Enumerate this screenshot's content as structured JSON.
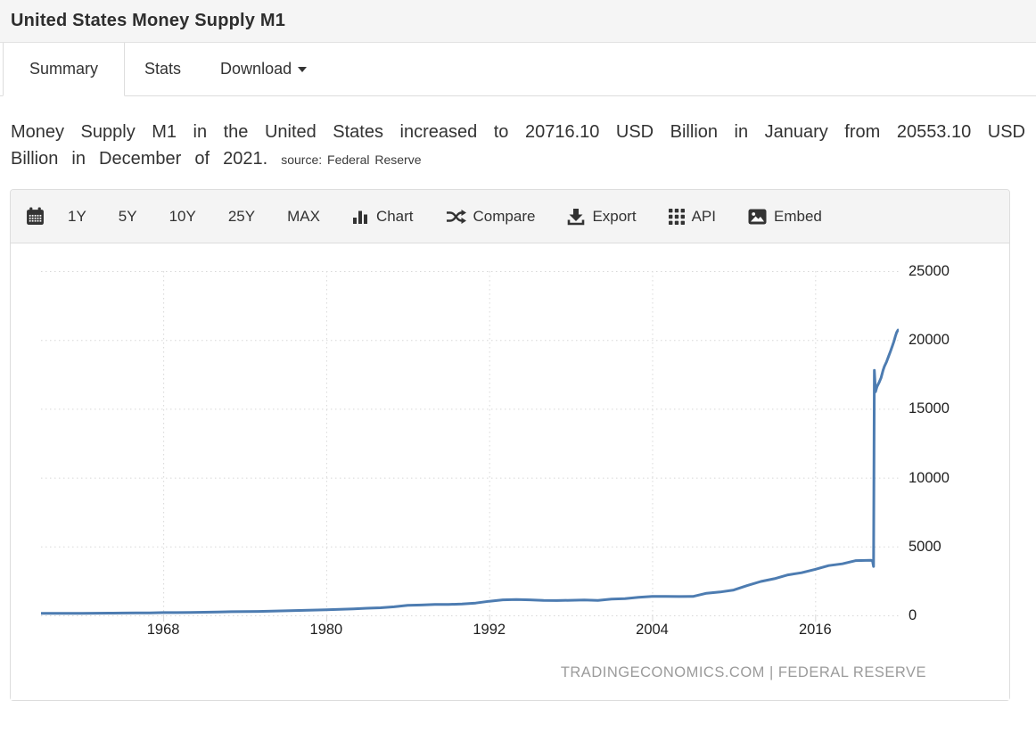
{
  "header": {
    "title": "United States Money Supply M1"
  },
  "tabs": [
    {
      "label": "Summary",
      "active": true
    },
    {
      "label": "Stats",
      "active": false
    },
    {
      "label": "Download",
      "active": false,
      "has_caret": true
    }
  ],
  "summary": {
    "text": "Money Supply M1 in the United States increased to 20716.10 USD Billion in January from 20553.10 USD Billion in December of 2021.",
    "source_label": "source:",
    "source_value": "Federal Reserve"
  },
  "toolbar": {
    "calendar_icon": "calendar-icon",
    "ranges": [
      "1Y",
      "5Y",
      "10Y",
      "25Y",
      "MAX"
    ],
    "actions": [
      {
        "icon": "bar-chart-icon",
        "label": "Chart"
      },
      {
        "icon": "shuffle-icon",
        "label": "Compare"
      },
      {
        "icon": "download-icon",
        "label": "Export"
      },
      {
        "icon": "grid-icon",
        "label": "API"
      },
      {
        "icon": "image-icon",
        "label": "Embed"
      }
    ]
  },
  "chart_data": {
    "type": "line",
    "series_name": "United States Money Supply M1 (USD Billion)",
    "x_range": [
      1959,
      2022.15
    ],
    "y_range": [
      0,
      25000
    ],
    "x_ticks": [
      1968,
      1980,
      1992,
      2004,
      2016
    ],
    "y_ticks": [
      0,
      5000,
      10000,
      15000,
      20000,
      25000
    ],
    "grid": true,
    "legend": false,
    "line_color": "#4d7cb1",
    "grid_color": "#d8d8d8",
    "watermark": "TRADINGECONOMICS.COM | FEDERAL RESERVE",
    "points": [
      [
        1959,
        141
      ],
      [
        1960,
        140
      ],
      [
        1961,
        145
      ],
      [
        1962,
        148
      ],
      [
        1963,
        154
      ],
      [
        1964,
        161
      ],
      [
        1965,
        168
      ],
      [
        1966,
        173
      ],
      [
        1967,
        184
      ],
      [
        1968,
        198
      ],
      [
        1969,
        204
      ],
      [
        1970,
        214
      ],
      [
        1971,
        228
      ],
      [
        1972,
        249
      ],
      [
        1973,
        263
      ],
      [
        1974,
        274
      ],
      [
        1975,
        287
      ],
      [
        1976,
        306
      ],
      [
        1977,
        331
      ],
      [
        1978,
        358
      ],
      [
        1979,
        382
      ],
      [
        1980,
        409
      ],
      [
        1981,
        436
      ],
      [
        1982,
        475
      ],
      [
        1983,
        521
      ],
      [
        1984,
        552
      ],
      [
        1985,
        620
      ],
      [
        1986,
        725
      ],
      [
        1987,
        750
      ],
      [
        1988,
        787
      ],
      [
        1989,
        794
      ],
      [
        1990,
        825
      ],
      [
        1991,
        897
      ],
      [
        1992,
        1025
      ],
      [
        1993,
        1130
      ],
      [
        1994,
        1150
      ],
      [
        1995,
        1127
      ],
      [
        1996,
        1081
      ],
      [
        1997,
        1073
      ],
      [
        1998,
        1095
      ],
      [
        1999,
        1123
      ],
      [
        2000,
        1088
      ],
      [
        2001,
        1183
      ],
      [
        2002,
        1220
      ],
      [
        2003,
        1306
      ],
      [
        2004,
        1376
      ],
      [
        2005,
        1375
      ],
      [
        2006,
        1367
      ],
      [
        2007,
        1373
      ],
      [
        2008,
        1604
      ],
      [
        2009,
        1696
      ],
      [
        2010,
        1837
      ],
      [
        2011,
        2164
      ],
      [
        2012,
        2460
      ],
      [
        2013,
        2664
      ],
      [
        2014,
        2940
      ],
      [
        2015,
        3094
      ],
      [
        2016,
        3342
      ],
      [
        2017,
        3617
      ],
      [
        2018,
        3742
      ],
      [
        2019,
        3978
      ],
      [
        2020.1,
        4003
      ],
      [
        2020.22,
        3960
      ],
      [
        2020.3,
        3550
      ],
      [
        2020.36,
        17800
      ],
      [
        2020.44,
        16230
      ],
      [
        2020.55,
        16600
      ],
      [
        2020.7,
        16900
      ],
      [
        2020.85,
        17250
      ],
      [
        2021,
        17807
      ],
      [
        2021.1,
        18080
      ],
      [
        2021.25,
        18400
      ],
      [
        2021.4,
        18800
      ],
      [
        2021.55,
        19200
      ],
      [
        2021.7,
        19600
      ],
      [
        2021.8,
        19900
      ],
      [
        2021.9,
        20250
      ],
      [
        2022,
        20553
      ],
      [
        2022.1,
        20716
      ]
    ]
  }
}
